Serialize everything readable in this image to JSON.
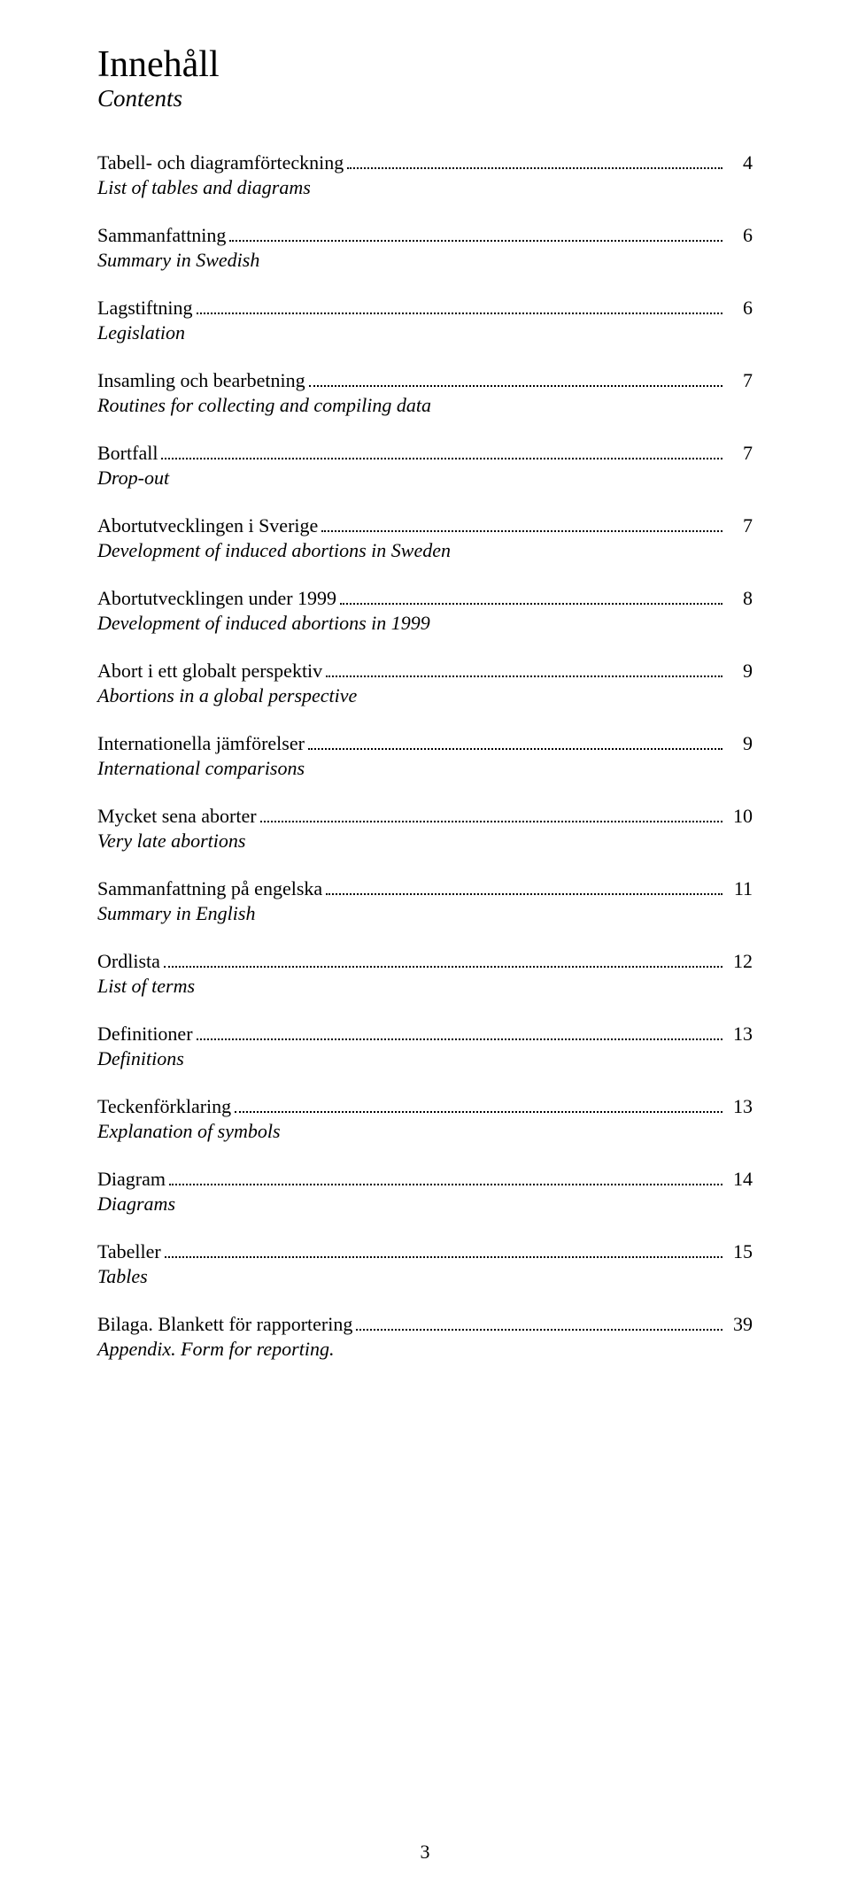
{
  "title": "Innehåll",
  "subtitle": "Contents",
  "page_number": "3",
  "colors": {
    "background": "#ffffff",
    "text": "#000000",
    "dots": "#000000"
  },
  "typography": {
    "title_fontsize": 42,
    "subtitle_fontsize": 27,
    "body_fontsize": 22,
    "font_family": "Times New Roman"
  },
  "entries": [
    {
      "label": "Tabell- och diagramförteckning",
      "sub": "List of tables and diagrams",
      "page": "4"
    },
    {
      "label": "Sammanfattning",
      "sub": "Summary in Swedish",
      "page": "6"
    },
    {
      "label": "Lagstiftning",
      "sub": "Legislation",
      "page": "6"
    },
    {
      "label": "Insamling och bearbetning",
      "sub": "Routines for collecting and compiling data",
      "page": "7"
    },
    {
      "label": "Bortfall",
      "sub": "Drop-out",
      "page": "7"
    },
    {
      "label": "Abortutvecklingen i Sverige",
      "sub": "Development of induced abortions in Sweden",
      "page": "7"
    },
    {
      "label": "Abortutvecklingen under 1999",
      "sub": "Development of induced abortions in 1999",
      "page": "8"
    },
    {
      "label": "Abort i ett globalt perspektiv",
      "sub": "Abortions in a global perspective",
      "page": "9"
    },
    {
      "label": "Internationella jämförelser",
      "sub": "International comparisons",
      "page": "9"
    },
    {
      "label": "Mycket sena aborter",
      "sub": "Very late abortions",
      "page": "10"
    },
    {
      "label": "Sammanfattning på engelska",
      "sub": "Summary in English",
      "page": "11"
    },
    {
      "label": "Ordlista",
      "sub": "List of terms",
      "page": "12"
    },
    {
      "label": "Definitioner",
      "sub": "Definitions",
      "page": "13"
    },
    {
      "label": "Teckenförklaring",
      "sub": "Explanation of symbols",
      "page": "13"
    },
    {
      "label": "Diagram",
      "sub": "Diagrams",
      "page": "14"
    },
    {
      "label": "Tabeller",
      "sub": "Tables",
      "page": "15"
    },
    {
      "label": "Bilaga. Blankett för rapportering",
      "sub": "Appendix. Form for reporting.",
      "page": "39"
    }
  ]
}
